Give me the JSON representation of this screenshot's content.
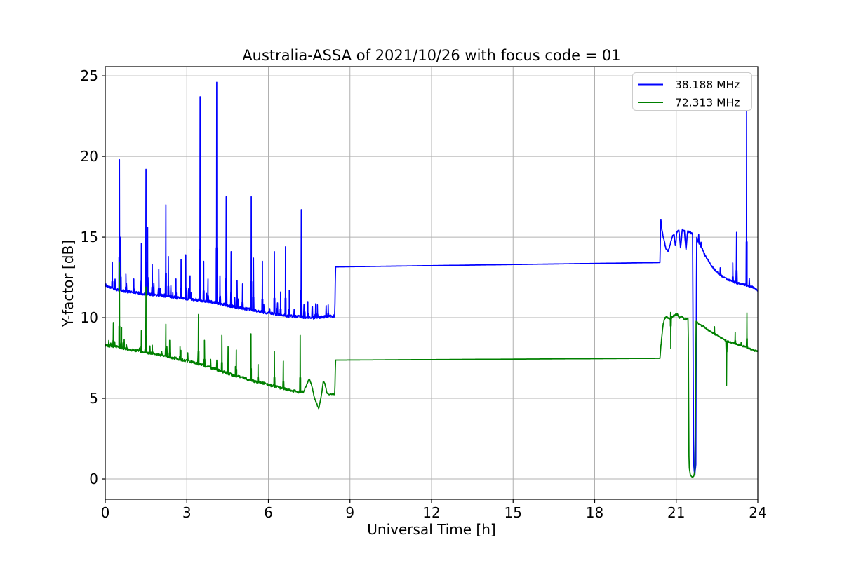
{
  "chart_data": {
    "type": "line",
    "title": "Australia-ASSA of 2021/10/26 with focus code = 01",
    "xlabel": "Universal Time [h]",
    "ylabel": "Y-factor [dB]",
    "xlim": [
      0,
      24
    ],
    "ylim": [
      -1.26,
      25.57
    ],
    "xticks": [
      0,
      3,
      6,
      9,
      12,
      15,
      18,
      21,
      24
    ],
    "yticks": [
      0,
      5,
      10,
      15,
      20,
      25
    ],
    "grid": true,
    "grid_color": "#b0b0b0",
    "axis_color": "#000000",
    "background": "#ffffff",
    "legend_position": "upper right",
    "legend_border_color": "#cccccc",
    "sample_step": 0.012,
    "series": [
      {
        "name": "38.188 MHz",
        "color": "#0000ff",
        "seed": 11,
        "baseline": [
          [
            0,
            12.05
          ],
          [
            0.15,
            11.9
          ],
          [
            0.4,
            11.75
          ],
          [
            0.7,
            11.65
          ],
          [
            1,
            11.6
          ],
          [
            1.3,
            11.5
          ],
          [
            1.6,
            11.45
          ],
          [
            2,
            11.4
          ],
          [
            2.4,
            11.3
          ],
          [
            2.8,
            11.2
          ],
          [
            3.2,
            11.15
          ],
          [
            3.6,
            11.05
          ],
          [
            4,
            10.95
          ],
          [
            4.4,
            10.8
          ],
          [
            4.8,
            10.65
          ],
          [
            5.2,
            10.55
          ],
          [
            5.6,
            10.4
          ],
          [
            6,
            10.3
          ],
          [
            6.4,
            10.2
          ],
          [
            6.8,
            10.1
          ],
          [
            7.2,
            10.05
          ],
          [
            7.6,
            10
          ],
          [
            8,
            10.05
          ],
          [
            8.44,
            10.1
          ],
          [
            8.47,
            13.15
          ],
          [
            20.4,
            13.42
          ],
          [
            20.43,
            16.1
          ],
          [
            20.48,
            15.4
          ],
          [
            20.55,
            14.8
          ],
          [
            20.62,
            14.3
          ],
          [
            20.7,
            14.15
          ],
          [
            20.78,
            14.55
          ],
          [
            20.85,
            15
          ],
          [
            20.92,
            15.2
          ],
          [
            20.97,
            14.35
          ],
          [
            21.02,
            15.3
          ],
          [
            21.1,
            15.45
          ],
          [
            21.16,
            14.3
          ],
          [
            21.22,
            15.45
          ],
          [
            21.3,
            15.4
          ],
          [
            21.36,
            14.2
          ],
          [
            21.42,
            15.35
          ],
          [
            21.5,
            15.3
          ],
          [
            21.6,
            15.2
          ],
          [
            21.64,
            1
          ],
          [
            21.68,
            0.2
          ],
          [
            21.72,
            0.9
          ],
          [
            21.75,
            14.95
          ],
          [
            21.85,
            14.6
          ],
          [
            21.95,
            14.3
          ],
          [
            22.05,
            13.9
          ],
          [
            22.15,
            13.6
          ],
          [
            22.25,
            13.35
          ],
          [
            22.4,
            13
          ],
          [
            22.55,
            12.75
          ],
          [
            22.7,
            12.55
          ],
          [
            22.85,
            12.4
          ],
          [
            23,
            12.3
          ],
          [
            23.2,
            12.15
          ],
          [
            23.4,
            12.1
          ],
          [
            23.6,
            12
          ],
          [
            23.8,
            11.9
          ],
          [
            24,
            11.7
          ]
        ],
        "spikes": [
          [
            0.26,
            13.45
          ],
          [
            0.52,
            19.8
          ],
          [
            0.57,
            15
          ],
          [
            0.76,
            12.7
          ],
          [
            1.05,
            12.4
          ],
          [
            1.33,
            14.6
          ],
          [
            1.5,
            19.2
          ],
          [
            1.56,
            15.6
          ],
          [
            1.73,
            13.3
          ],
          [
            1.97,
            13
          ],
          [
            2.23,
            17
          ],
          [
            2.32,
            13.8
          ],
          [
            2.6,
            12.4
          ],
          [
            2.79,
            13.6
          ],
          [
            2.96,
            13.9
          ],
          [
            3.12,
            12.6
          ],
          [
            3.49,
            23.7
          ],
          [
            3.62,
            13.5
          ],
          [
            3.78,
            12.4
          ],
          [
            4.1,
            24.6
          ],
          [
            4.22,
            12.6
          ],
          [
            4.45,
            17.5
          ],
          [
            4.63,
            14.1
          ],
          [
            4.85,
            12.3
          ],
          [
            5.05,
            12.1
          ],
          [
            5.37,
            17.5
          ],
          [
            5.45,
            13.7
          ],
          [
            5.78,
            13.5
          ],
          [
            6.22,
            14.1
          ],
          [
            6.45,
            11.6
          ],
          [
            6.63,
            14.4
          ],
          [
            6.77,
            11.7
          ],
          [
            7.21,
            16.7
          ],
          [
            7.45,
            11
          ],
          [
            7.8,
            10.8
          ],
          [
            8.2,
            10.8
          ],
          [
            22.62,
            13.1
          ],
          [
            23.08,
            13.4
          ],
          [
            23.22,
            15.3
          ],
          [
            23.59,
            22.8
          ]
        ],
        "noise": [
          {
            "from": 0,
            "to": 8.44,
            "amp": 0.09,
            "p": 0.05
          },
          {
            "from": 20.43,
            "to": 24,
            "amp": 0.06,
            "p": 0.02
          }
        ]
      },
      {
        "name": "72.313 MHz",
        "color": "#008000",
        "seed": 42,
        "baseline": [
          [
            0,
            8.3
          ],
          [
            0.4,
            8.2
          ],
          [
            0.8,
            8.05
          ],
          [
            1.2,
            7.95
          ],
          [
            1.6,
            7.8
          ],
          [
            2,
            7.7
          ],
          [
            2.4,
            7.55
          ],
          [
            2.8,
            7.4
          ],
          [
            3.2,
            7.25
          ],
          [
            3.6,
            7.05
          ],
          [
            4,
            6.85
          ],
          [
            4.3,
            6.65
          ],
          [
            4.7,
            6.45
          ],
          [
            5.1,
            6.25
          ],
          [
            5.5,
            6.05
          ],
          [
            5.9,
            5.9
          ],
          [
            6.3,
            5.7
          ],
          [
            6.7,
            5.55
          ],
          [
            7.1,
            5.4
          ],
          [
            7.3,
            5.4
          ],
          [
            7.42,
            5.9
          ],
          [
            7.5,
            6.2
          ],
          [
            7.58,
            5.9
          ],
          [
            7.7,
            5
          ],
          [
            7.85,
            4.35
          ],
          [
            7.95,
            5.2
          ],
          [
            8.02,
            6.05
          ],
          [
            8.08,
            5.9
          ],
          [
            8.15,
            5.35
          ],
          [
            8.22,
            5.25
          ],
          [
            8.44,
            5.25
          ],
          [
            8.47,
            7.37
          ],
          [
            20.4,
            7.48
          ],
          [
            20.44,
            8.3
          ],
          [
            20.5,
            9.4
          ],
          [
            20.56,
            9.9
          ],
          [
            20.62,
            10.05
          ],
          [
            20.7,
            10
          ],
          [
            20.78,
            9.9
          ],
          [
            20.85,
            10.05
          ],
          [
            20.95,
            10.15
          ],
          [
            21.05,
            10.2
          ],
          [
            21.12,
            10
          ],
          [
            21.2,
            10.1
          ],
          [
            21.3,
            9.9
          ],
          [
            21.38,
            9.95
          ],
          [
            21.44,
            9.9
          ],
          [
            21.47,
            0.8
          ],
          [
            21.52,
            0.25
          ],
          [
            21.58,
            0.12
          ],
          [
            21.64,
            0.15
          ],
          [
            21.69,
            0.5
          ],
          [
            21.73,
            9.75
          ],
          [
            21.85,
            9.6
          ],
          [
            22,
            9.45
          ],
          [
            22.15,
            9.25
          ],
          [
            22.3,
            9.1
          ],
          [
            22.45,
            8.95
          ],
          [
            22.6,
            8.8
          ],
          [
            22.75,
            8.65
          ],
          [
            22.95,
            8.5
          ],
          [
            23.15,
            8.4
          ],
          [
            23.35,
            8.3
          ],
          [
            23.55,
            8.2
          ],
          [
            23.75,
            8.05
          ],
          [
            23.9,
            7.95
          ],
          [
            24,
            7.9
          ]
        ],
        "spikes": [
          [
            0.3,
            9.7
          ],
          [
            0.52,
            13.4
          ],
          [
            0.6,
            9.4
          ],
          [
            1.33,
            9.2
          ],
          [
            1.5,
            11.9
          ],
          [
            1.73,
            8.3
          ],
          [
            2.23,
            9.6
          ],
          [
            2.37,
            8.6
          ],
          [
            2.75,
            8.2
          ],
          [
            3.43,
            10.2
          ],
          [
            3.65,
            8.6
          ],
          [
            4.29,
            8.9
          ],
          [
            4.52,
            8.2
          ],
          [
            4.82,
            8
          ],
          [
            5.36,
            9
          ],
          [
            5.62,
            7.1
          ],
          [
            6.22,
            7.9
          ],
          [
            6.55,
            7.3
          ],
          [
            7.17,
            8.9
          ],
          [
            20.8,
            8.1
          ],
          [
            22.85,
            5.8
          ],
          [
            23.17,
            9.1
          ],
          [
            23.6,
            10.3
          ]
        ],
        "noise": [
          {
            "from": 0,
            "to": 7.35,
            "amp": 0.08,
            "p": 0.04
          },
          {
            "from": 7.35,
            "to": 8.44,
            "amp": 0.03,
            "p": 0
          },
          {
            "from": 20.43,
            "to": 21.44,
            "amp": 0.06,
            "p": 0.02
          },
          {
            "from": 21.73,
            "to": 24,
            "amp": 0.05,
            "p": 0.02
          }
        ]
      }
    ]
  }
}
